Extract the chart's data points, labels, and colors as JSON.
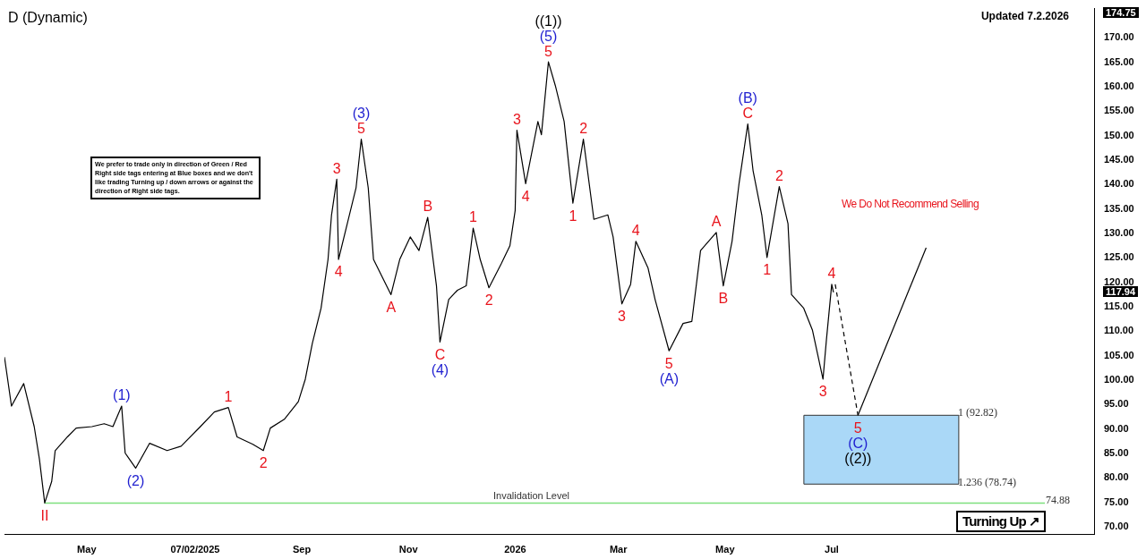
{
  "chart_data": {
    "type": "line",
    "title": "D (Dynamic)",
    "marker": "none",
    "legend": false,
    "grid": false,
    "xlim": [
      "2025-03-15",
      "2026-11-28"
    ],
    "xticks": [
      {
        "value": "2025-05-01",
        "label": "May"
      },
      {
        "value": "2025-07-02",
        "label": "07/02/2025"
      },
      {
        "value": "2025-09-01",
        "label": "Sep"
      },
      {
        "value": "2025-11-01",
        "label": "Nov"
      },
      {
        "value": "2026-01-01",
        "label": "2026"
      },
      {
        "value": "2026-03-01",
        "label": "Mar"
      },
      {
        "value": "2026-05-01",
        "label": "May"
      },
      {
        "value": "2026-07-01",
        "label": "Jul"
      }
    ],
    "ylim": [
      68.4,
      176
    ],
    "yticks": [
      {
        "value": 70,
        "label": "70.00"
      },
      {
        "value": 75,
        "label": "75.00"
      },
      {
        "value": 80,
        "label": "80.00"
      },
      {
        "value": 85,
        "label": "85.00"
      },
      {
        "value": 90,
        "label": "90.00"
      },
      {
        "value": 95,
        "label": "95.00"
      },
      {
        "value": 100,
        "label": "100.00"
      },
      {
        "value": 105,
        "label": "105.00"
      },
      {
        "value": 110,
        "label": "110.00"
      },
      {
        "value": 115,
        "label": "115.00"
      },
      {
        "value": 120,
        "label": "120.00"
      },
      {
        "value": 125,
        "label": "125.00"
      },
      {
        "value": 130,
        "label": "130.00"
      },
      {
        "value": 135,
        "label": "135.00"
      },
      {
        "value": 140,
        "label": "140.00"
      },
      {
        "value": 145,
        "label": "145.00"
      },
      {
        "value": 150,
        "label": "150.00"
      },
      {
        "value": 155,
        "label": "155.00"
      },
      {
        "value": 160,
        "label": "160.00"
      },
      {
        "value": 165,
        "label": "165.00"
      },
      {
        "value": 170,
        "label": "170.00"
      }
    ],
    "series": [
      {
        "color": "#000000",
        "x": [
          "2025-03-15",
          "2025-03-19",
          "2025-03-26",
          "2025-04-01",
          "2025-04-04",
          "2025-04-07",
          "2025-04-11",
          "2025-04-13",
          "2025-04-20",
          "2025-04-25",
          "2025-05-04",
          "2025-05-11",
          "2025-05-16",
          "2025-05-21",
          "2025-05-23",
          "2025-05-29",
          "2025-06-06",
          "2025-06-16",
          "2025-06-24",
          "2025-07-05",
          "2025-07-13",
          "2025-07-21",
          "2025-07-26",
          "2025-08-04",
          "2025-08-10",
          "2025-08-14",
          "2025-08-22",
          "2025-08-30",
          "2025-09-03",
          "2025-09-07",
          "2025-09-12",
          "2025-09-16",
          "2025-09-18",
          "2025-09-21",
          "2025-09-22",
          "2025-09-27",
          "2025-10-02",
          "2025-10-05",
          "2025-10-09",
          "2025-10-12",
          "2025-10-17",
          "2025-10-22",
          "2025-10-27",
          "2025-11-02",
          "2025-11-07",
          "2025-11-12",
          "2025-11-17",
          "2025-11-19",
          "2025-11-24",
          "2025-11-29",
          "2025-12-04",
          "2025-12-08",
          "2025-12-12",
          "2025-12-17",
          "2025-12-24",
          "2025-12-29",
          "2026-01-01",
          "2026-01-02",
          "2026-01-07",
          "2026-01-14",
          "2026-01-16",
          "2026-01-20",
          "2026-01-24",
          "2026-01-29",
          "2026-02-03",
          "2026-02-09",
          "2026-02-15",
          "2026-02-23",
          "2026-02-26",
          "2026-03-03",
          "2026-03-08",
          "2026-03-11",
          "2026-03-18",
          "2026-03-22",
          "2026-03-30",
          "2026-04-07",
          "2026-04-12",
          "2026-04-17",
          "2026-04-26",
          "2026-04-30",
          "2026-05-05",
          "2026-05-09",
          "2026-05-14",
          "2026-05-17",
          "2026-05-22",
          "2026-05-25",
          "2026-06-01",
          "2026-06-06",
          "2026-06-08",
          "2026-06-15",
          "2026-06-20",
          "2026-06-26",
          "2026-06-28",
          "2026-07-01",
          "2026-07-02"
        ],
        "values": [
          104.7,
          94.7,
          99.3,
          90.5,
          83.8,
          74.88,
          79.3,
          85.6,
          88.4,
          90.2,
          90.5,
          91.1,
          90.5,
          94.7,
          85.1,
          82.0,
          87.1,
          85.6,
          86.5,
          90.5,
          93.5,
          94.4,
          88.4,
          86.9,
          85.6,
          90.2,
          92.0,
          95.6,
          100.2,
          107.5,
          114.7,
          124.7,
          133.8,
          141.1,
          124.7,
          132.0,
          139.3,
          149.3,
          139.3,
          124.7,
          121.1,
          117.5,
          124.7,
          129.3,
          126.5,
          133.3,
          119.3,
          107.8,
          116.5,
          118.4,
          119.3,
          131.1,
          124.7,
          118.9,
          123.8,
          127.5,
          134.7,
          151.1,
          140.2,
          152.9,
          150.2,
          165.1,
          160.2,
          152.9,
          136.2,
          149.3,
          132.9,
          133.8,
          129.3,
          115.6,
          119.6,
          128.4,
          122.9,
          116.5,
          106.0,
          111.6,
          112.0,
          126.5,
          130.2,
          119.3,
          128.4,
          140.2,
          152.4,
          142.9,
          133.8,
          125.1,
          139.6,
          132.0,
          117.5,
          114.7,
          110.2,
          100.2,
          108.4,
          119.6,
          117.94
        ]
      },
      {
        "color": "#000000",
        "line_style": "dashed",
        "x": [
          "2026-07-03",
          "2026-07-16"
        ],
        "values": [
          119.6,
          92.82
        ]
      },
      {
        "color": "#000000",
        "x": [
          "2026-07-16",
          "2026-08-24"
        ],
        "values": [
          92.82,
          127.1
        ]
      }
    ],
    "ref_lines": [
      {
        "axis": "y",
        "value": 74.88,
        "label": "Invalidation Level",
        "color": "#7ee07e"
      }
    ],
    "bands": [
      {
        "axis": "y",
        "from": 78.74,
        "to": 92.82,
        "color": "#aad8f7"
      }
    ],
    "annotations": [
      {
        "text": "II",
        "x": "2025-04-07",
        "y": 74.88
      },
      {
        "text": "(1)",
        "x": "2025-05-21",
        "y": 94.7
      },
      {
        "text": "(2)",
        "x": "2025-05-29",
        "y": 82.0
      },
      {
        "text": "1",
        "x": "2025-07-21",
        "y": 94.4
      },
      {
        "text": "2",
        "x": "2025-08-10",
        "y": 85.6
      },
      {
        "text": "3",
        "x": "2025-09-21",
        "y": 141.1
      },
      {
        "text": "4",
        "x": "2025-09-22",
        "y": 124.7
      },
      {
        "text": "5",
        "x": "2025-10-05",
        "y": 149.3
      },
      {
        "text": "(3)",
        "x": "2025-10-05",
        "y": 149.3
      },
      {
        "text": "A",
        "x": "2025-10-22",
        "y": 117.5
      },
      {
        "text": "B",
        "x": "2025-11-12",
        "y": 133.3
      },
      {
        "text": "C",
        "x": "2025-11-19",
        "y": 107.8
      },
      {
        "text": "(4)",
        "x": "2025-11-19",
        "y": 107.8
      },
      {
        "text": "1",
        "x": "2025-12-08",
        "y": 131.1
      },
      {
        "text": "2",
        "x": "2025-12-17",
        "y": 118.9
      },
      {
        "text": "3",
        "x": "2026-01-02",
        "y": 151.1
      },
      {
        "text": "4",
        "x": "2026-01-07",
        "y": 140.2
      },
      {
        "text": "5",
        "x": "2026-01-20",
        "y": 165.1
      },
      {
        "text": "(5)",
        "x": "2026-01-20",
        "y": 165.1
      },
      {
        "text": "((1))",
        "x": "2026-01-20",
        "y": 165.1
      },
      {
        "text": "1",
        "x": "2026-02-03",
        "y": 136.2
      },
      {
        "text": "2",
        "x": "2026-02-09",
        "y": 149.3
      },
      {
        "text": "3",
        "x": "2026-03-03",
        "y": 115.6
      },
      {
        "text": "4",
        "x": "2026-03-11",
        "y": 128.4
      },
      {
        "text": "5",
        "x": "2026-03-30",
        "y": 106.0
      },
      {
        "text": "(A)",
        "x": "2026-03-30",
        "y": 106.0
      },
      {
        "text": "A",
        "x": "2026-04-26",
        "y": 130.2
      },
      {
        "text": "B",
        "x": "2026-04-30",
        "y": 119.3
      },
      {
        "text": "C",
        "x": "2026-05-14",
        "y": 152.4
      },
      {
        "text": "(B)",
        "x": "2026-05-14",
        "y": 152.4
      },
      {
        "text": "1",
        "x": "2026-05-25",
        "y": 125.1
      },
      {
        "text": "2",
        "x": "2026-06-01",
        "y": 139.6
      },
      {
        "text": "3",
        "x": "2026-06-26",
        "y": 100.2
      },
      {
        "text": "4",
        "x": "2026-07-01",
        "y": 119.6
      },
      {
        "text": "5",
        "x": "2026-07-16",
        "y": 92.82
      },
      {
        "text": "(C)",
        "x": "2026-07-16",
        "y": 92.82
      },
      {
        "text": "((2))",
        "x": "2026-07-16",
        "y": 92.82
      },
      "1 (92.82)",
      "1.236 (78.74)",
      "We prefer to trade only in direction of Green / Red Right side tags entering at Blue boxes and we don't like trading Turning up / down arrows or against the direction of Right side tags.",
      "We Do Not Recommend Selling",
      "Updated 7.2.2026",
      "Turning Up ↗",
      "74.88",
      "117.94",
      "174.75"
    ]
  }
}
